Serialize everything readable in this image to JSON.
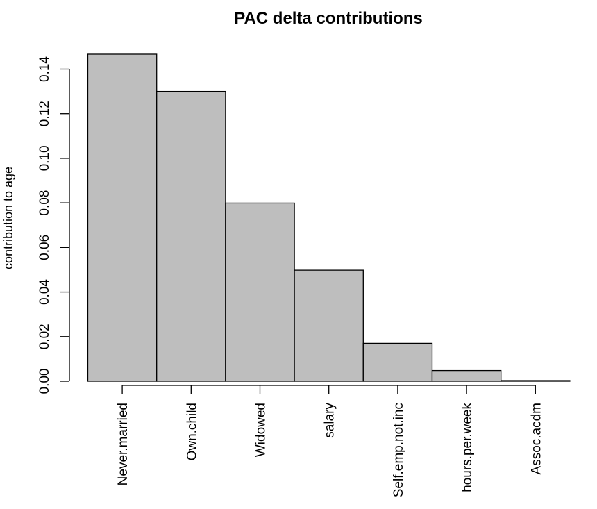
{
  "chart_data": {
    "type": "bar",
    "title": "PAC delta contributions",
    "xlabel": "",
    "ylabel": "contribution to age",
    "categories": [
      "Never.married",
      "Own.child",
      "Widowed",
      "salary",
      "Self.emp.not.inc",
      "hours.per.week",
      "Assoc.acdm"
    ],
    "values": [
      0.1467,
      0.13,
      0.0799,
      0.0498,
      0.017,
      0.0048,
      0.0003
    ],
    "yticks": [
      "0.00",
      "0.02",
      "0.04",
      "0.06",
      "0.08",
      "0.10",
      "0.12",
      "0.14"
    ],
    "ylim": [
      0,
      0.14
    ],
    "grid": false,
    "bar_color": "#bebebe",
    "bar_border": "#000000"
  }
}
